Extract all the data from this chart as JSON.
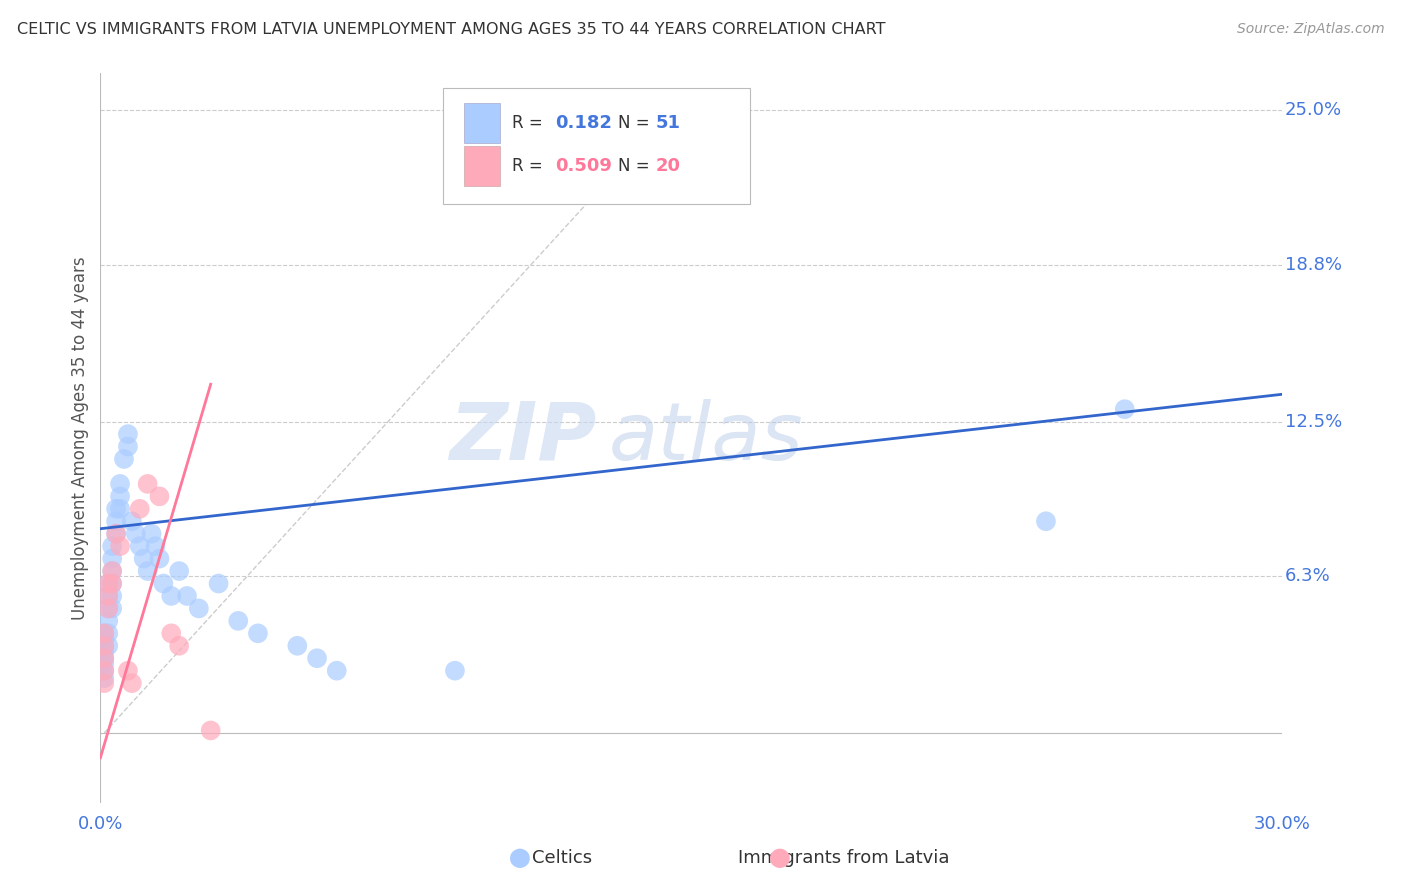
{
  "title": "CELTIC VS IMMIGRANTS FROM LATVIA UNEMPLOYMENT AMONG AGES 35 TO 44 YEARS CORRELATION CHART",
  "source": "Source: ZipAtlas.com",
  "ylabel": "Unemployment Among Ages 35 to 44 years",
  "xlim": [
    0.0,
    0.3
  ],
  "ylim": [
    -0.028,
    0.265
  ],
  "ytick_positions": [
    0.063,
    0.125,
    0.188,
    0.25
  ],
  "ytick_labels": [
    "6.3%",
    "12.5%",
    "18.8%",
    "25.0%"
  ],
  "grid_color": "#cccccc",
  "background_color": "#ffffff",
  "legend_R1": "0.182",
  "legend_N1": "51",
  "legend_R2": "0.509",
  "legend_N2": "20",
  "celtics_color": "#aaccff",
  "latvia_color": "#ffaabb",
  "celtics_line_color": "#3366cc",
  "latvia_line_color": "#ff7799",
  "ref_line_color": "#cccccc",
  "watermark_zip": "ZIP",
  "watermark_atlas": "atlas",
  "celtics_x": [
    0.001,
    0.001,
    0.001,
    0.001,
    0.001,
    0.001,
    0.001,
    0.001,
    0.002,
    0.002,
    0.002,
    0.002,
    0.002,
    0.002,
    0.003,
    0.003,
    0.003,
    0.003,
    0.003,
    0.003,
    0.004,
    0.004,
    0.004,
    0.005,
    0.005,
    0.005,
    0.006,
    0.007,
    0.007,
    0.008,
    0.009,
    0.01,
    0.011,
    0.012,
    0.013,
    0.014,
    0.015,
    0.016,
    0.018,
    0.02,
    0.022,
    0.025,
    0.03,
    0.035,
    0.04,
    0.05,
    0.055,
    0.06,
    0.09,
    0.24,
    0.26
  ],
  "celtics_y": [
    0.04,
    0.038,
    0.035,
    0.033,
    0.03,
    0.028,
    0.025,
    0.022,
    0.06,
    0.055,
    0.05,
    0.045,
    0.04,
    0.035,
    0.075,
    0.07,
    0.065,
    0.06,
    0.055,
    0.05,
    0.09,
    0.085,
    0.08,
    0.1,
    0.095,
    0.09,
    0.11,
    0.12,
    0.115,
    0.085,
    0.08,
    0.075,
    0.07,
    0.065,
    0.08,
    0.075,
    0.07,
    0.06,
    0.055,
    0.065,
    0.055,
    0.05,
    0.06,
    0.045,
    0.04,
    0.035,
    0.03,
    0.025,
    0.025,
    0.085,
    0.13
  ],
  "latvia_x": [
    0.001,
    0.001,
    0.001,
    0.001,
    0.001,
    0.002,
    0.002,
    0.002,
    0.003,
    0.003,
    0.004,
    0.005,
    0.007,
    0.008,
    0.01,
    0.012,
    0.015,
    0.018,
    0.02,
    0.028
  ],
  "latvia_y": [
    0.04,
    0.035,
    0.03,
    0.025,
    0.02,
    0.06,
    0.055,
    0.05,
    0.065,
    0.06,
    0.08,
    0.075,
    0.025,
    0.02,
    0.09,
    0.1,
    0.095,
    0.04,
    0.035,
    0.001
  ],
  "celtics_trend_x0": 0.0,
  "celtics_trend_y0": 0.082,
  "celtics_trend_x1": 0.3,
  "celtics_trend_y1": 0.136,
  "latvia_trend_x0": 0.0,
  "latvia_trend_y0": -0.01,
  "latvia_trend_x1": 0.028,
  "latvia_trend_y1": 0.14,
  "ref_line_x0": 0.001,
  "ref_line_y0": 0.0,
  "ref_line_x1": 0.145,
  "ref_line_y1": 0.25
}
